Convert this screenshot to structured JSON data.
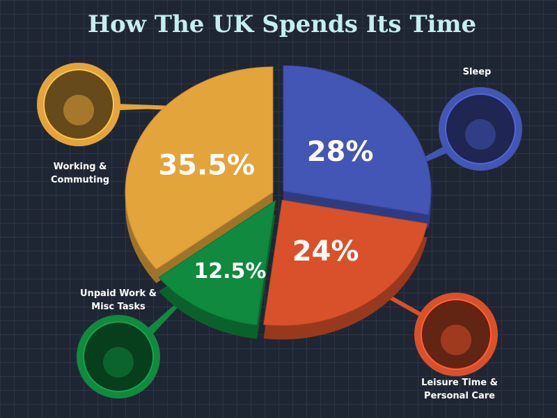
{
  "chart_data": {
    "type": "pie",
    "title": "How The UK Spends Its Time",
    "categories": [
      "Sleep",
      "Leisure Time & Personal Care",
      "Unpaid Work & Misc Tasks",
      "Working & Commuting"
    ],
    "values": [
      28,
      24,
      12.5,
      35.5
    ],
    "value_labels": [
      "28%",
      "24%",
      "12.5%",
      "35.5%"
    ],
    "colors": [
      "#4355b5",
      "#d9512a",
      "#0f8a3e",
      "#e3a43c"
    ]
  }
}
